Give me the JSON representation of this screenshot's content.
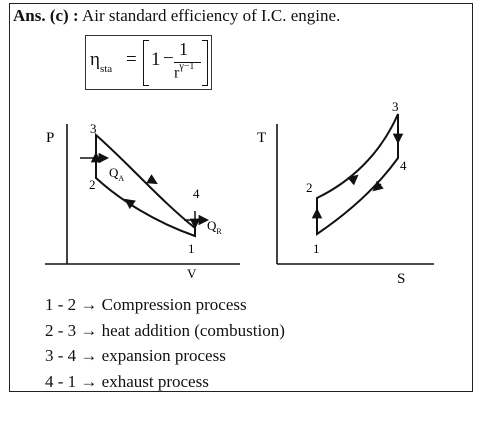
{
  "heading": {
    "prefix": "Ans. (c) :",
    "text": "Air standard  efficiency of I.C. engine."
  },
  "formula": {
    "symbol": "η",
    "subscript": "sta",
    "equals": "=",
    "one": "1",
    "minus": "−",
    "numerator": "1",
    "denominator_base": "r",
    "denominator_exponent": "γ−1"
  },
  "pv_diagram": {
    "y_axis_label": "P",
    "x_axis_label": "V",
    "point_labels": [
      "1",
      "2",
      "3",
      "4"
    ],
    "heat_in_label": "Q",
    "heat_in_sub": "A",
    "heat_out_label": "Q",
    "heat_out_sub": "R"
  },
  "ts_diagram": {
    "y_axis_label": "T",
    "x_axis_label": "S",
    "point_labels": [
      "1",
      "2",
      "3",
      "4"
    ]
  },
  "processes": [
    {
      "steps": "1 - 2",
      "arrow": "→",
      "desc": "Compression process"
    },
    {
      "steps": "2 - 3",
      "arrow": "→",
      "desc": "heat addition (combustion)"
    },
    {
      "steps": "3 - 4",
      "arrow": "→",
      "desc": "expansion process"
    },
    {
      "steps": "4 - 1",
      "arrow": "→",
      "desc": "exhaust process"
    }
  ]
}
